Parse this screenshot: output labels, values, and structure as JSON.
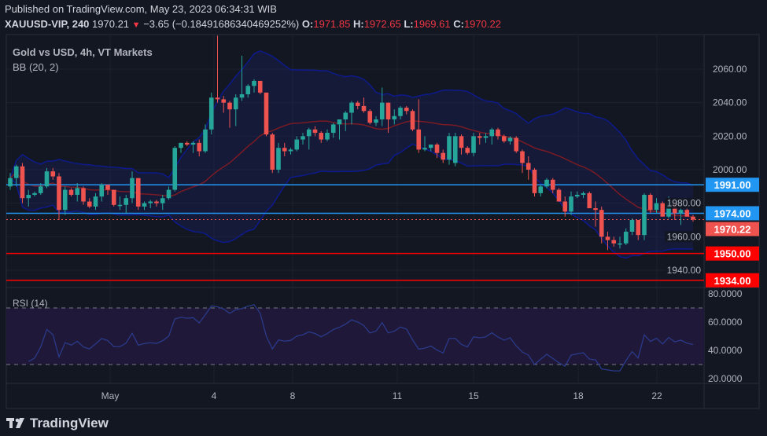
{
  "header": {
    "published": "Published on TradingView.com, May 23, 2023 06:34:31 WIB",
    "symbol": "XAUUSD-VIP, 240",
    "last": "1970.21",
    "change": "−3.65 (−0.18491686340469252%)",
    "o_label": "O:",
    "o": "1971.85",
    "h_label": "H:",
    "h": "1972.65",
    "l_label": "L:",
    "l": "1969.61",
    "c_label": "C:",
    "c": "1970.22"
  },
  "legend": {
    "title": "Gold vs USD, 4h, VT Markets",
    "bb": "BB (20, 2)",
    "rsi": "RSI (14)"
  },
  "footer": {
    "brand": "TradingView"
  },
  "colors": {
    "up": "#26a69a",
    "down": "#ef5350",
    "bb_band": "#0d1a8c",
    "bb_basis": "#7a1a24",
    "blue_line": "#2196f3",
    "red_line": "#ff0000",
    "rsi": "#2a3a8a"
  },
  "chart_data": {
    "type": "candlestick",
    "price_axis": {
      "ticks": [
        "2060.00",
        "2040.00",
        "2020.00",
        "2000.00",
        "1980.00",
        "1960.00",
        "1940.00"
      ],
      "range": [
        1926,
        2076
      ]
    },
    "rsi_axis": {
      "ticks": [
        "80.0000",
        "60.0000",
        "40.0000",
        "20.0000"
      ],
      "range": [
        15,
        85
      ],
      "bands": [
        30,
        70
      ]
    },
    "x_ticks": [
      "May",
      "4",
      "8",
      "11",
      "15",
      "18",
      "22"
    ],
    "levels": [
      {
        "price": 1991.0,
        "label": "1991.00",
        "color": "#2196f3"
      },
      {
        "price": 1974.0,
        "label": "1974.00",
        "color": "#2196f3"
      },
      {
        "price": 1950.0,
        "label": "1950.00",
        "color": "#ff0000"
      },
      {
        "price": 1934.0,
        "label": "1934.00",
        "color": "#ff0000"
      }
    ],
    "last_price": {
      "price": 1970.22,
      "label": "1970.22"
    },
    "candles": [
      [
        1990,
        1998,
        1988,
        1995
      ],
      [
        1995,
        2003,
        1990,
        2002
      ],
      [
        2002,
        2004,
        1980,
        1983
      ],
      [
        1983,
        1988,
        1978,
        1985
      ],
      [
        1985,
        1987,
        1984,
        1986
      ],
      [
        1986,
        1992,
        1985,
        1990
      ],
      [
        1990,
        2001,
        1989,
        1999
      ],
      [
        1999,
        2001,
        1994,
        1996
      ],
      [
        1996,
        1998,
        1970,
        1976
      ],
      [
        1976,
        1990,
        1973,
        1988
      ],
      [
        1988,
        1989,
        1984,
        1985
      ],
      [
        1985,
        1992,
        1981,
        1989
      ],
      [
        1989,
        1990,
        1979,
        1981
      ],
      [
        1981,
        1983,
        1977,
        1978
      ],
      [
        1978,
        1986,
        1976,
        1984
      ],
      [
        1984,
        1992,
        1981,
        1991
      ],
      [
        1991,
        1991,
        1985,
        1988
      ],
      [
        1988,
        1988,
        1978,
        1979
      ],
      [
        1979,
        1984,
        1976,
        1979
      ],
      [
        1979,
        1985,
        1974,
        1983
      ],
      [
        1983,
        1999,
        1980,
        1995
      ],
      [
        1995,
        1995,
        1976,
        1978
      ],
      [
        1978,
        1981,
        1976,
        1980
      ],
      [
        1980,
        1982,
        1977,
        1981
      ],
      [
        1981,
        1982,
        1978,
        1980
      ],
      [
        1980,
        1985,
        1976,
        1983
      ],
      [
        1983,
        1990,
        1982,
        1988
      ],
      [
        1988,
        2014,
        1987,
        2013
      ],
      [
        2013,
        2016,
        2010,
        2016
      ],
      [
        2016,
        2017,
        2014,
        2015
      ],
      [
        2015,
        2017,
        2010,
        2016
      ],
      [
        2016,
        2018,
        2008,
        2011
      ],
      [
        2011,
        2027,
        2010,
        2024
      ],
      [
        2024,
        2046,
        2021,
        2043
      ],
      [
        2043,
        2080,
        2040,
        2042
      ],
      [
        2042,
        2044,
        2034,
        2040
      ],
      [
        2040,
        2041,
        2025,
        2036
      ],
      [
        2036,
        2045,
        2026,
        2043
      ],
      [
        2043,
        2068,
        2041,
        2045
      ],
      [
        2045,
        2051,
        2043,
        2050
      ],
      [
        2050,
        2054,
        2046,
        2053
      ],
      [
        2053,
        2053,
        2045,
        2046
      ],
      [
        2046,
        2046,
        2020,
        2021
      ],
      [
        2021,
        2022,
        1998,
        2000
      ],
      [
        2000,
        2016,
        1998,
        2013
      ],
      [
        2013,
        2016,
        2008,
        2011
      ],
      [
        2011,
        2013,
        2009,
        2012
      ],
      [
        2012,
        2020,
        2011,
        2018
      ],
      [
        2018,
        2022,
        2015,
        2020
      ],
      [
        2020,
        2025,
        2012,
        2024
      ],
      [
        2024,
        2026,
        2020,
        2022
      ],
      [
        2022,
        2023,
        2016,
        2018
      ],
      [
        2018,
        2024,
        2017,
        2022
      ],
      [
        2022,
        2028,
        2019,
        2027
      ],
      [
        2027,
        2030,
        2018,
        2030
      ],
      [
        2030,
        2035,
        2023,
        2034
      ],
      [
        2034,
        2041,
        2027,
        2040
      ],
      [
        2040,
        2041,
        2036,
        2038
      ],
      [
        2038,
        2043,
        2034,
        2035
      ],
      [
        2035,
        2036,
        2027,
        2028
      ],
      [
        2028,
        2032,
        2026,
        2030
      ],
      [
        2030,
        2049,
        2026,
        2040
      ],
      [
        2040,
        2040,
        2022,
        2030
      ],
      [
        2030,
        2036,
        2027,
        2032
      ],
      [
        2032,
        2038,
        2030,
        2037
      ],
      [
        2037,
        2038,
        2033,
        2035
      ],
      [
        2035,
        2036,
        2023,
        2024
      ],
      [
        2024,
        2042,
        2010,
        2012
      ],
      [
        2012,
        2020,
        2011,
        2013
      ],
      [
        2013,
        2015,
        2011,
        2015
      ],
      [
        2015,
        2016,
        2007,
        2010
      ],
      [
        2010,
        2012,
        2004,
        2006
      ],
      [
        2006,
        2022,
        2003,
        2020
      ],
      [
        2004,
        2022,
        2002,
        2020
      ],
      [
        2020,
        2021,
        2009,
        2013
      ],
      [
        2013,
        2014,
        2009,
        2010
      ],
      [
        2010,
        2022,
        2008,
        2020
      ],
      [
        2020,
        2022,
        2015,
        2019
      ],
      [
        2019,
        2022,
        2016,
        2020
      ],
      [
        2020,
        2025,
        2015,
        2024
      ],
      [
        2024,
        2025,
        2018,
        2020
      ],
      [
        2020,
        2021,
        2016,
        2017
      ],
      [
        2017,
        2020,
        2015,
        2019
      ],
      [
        2019,
        2020,
        2010,
        2011
      ],
      [
        2011,
        2012,
        1998,
        2004
      ],
      [
        2004,
        2008,
        1994,
        2000
      ],
      [
        2000,
        2001,
        1984,
        1986
      ],
      [
        1986,
        1991,
        1984,
        1990
      ],
      [
        1990,
        1995,
        1989,
        1994
      ],
      [
        1994,
        1995,
        1986,
        1988
      ],
      [
        1988,
        1989,
        1981,
        1981
      ],
      [
        1981,
        1984,
        1972,
        1975
      ],
      [
        1975,
        1987,
        1973,
        1984
      ],
      [
        1984,
        1987,
        1983,
        1985
      ],
      [
        1985,
        1987,
        1983,
        1986
      ],
      [
        1986,
        1987,
        1977,
        1977
      ],
      [
        1977,
        1981,
        1966,
        1976
      ],
      [
        1976,
        1978,
        1956,
        1960
      ],
      [
        1960,
        1963,
        1952,
        1958
      ],
      [
        1958,
        1960,
        1954,
        1956
      ],
      [
        1956,
        1960,
        1953,
        1956
      ],
      [
        1956,
        1965,
        1955,
        1963
      ],
      [
        1963,
        1971,
        1961,
        1970
      ],
      [
        1970,
        1970,
        1958,
        1961
      ],
      [
        1961,
        1986,
        1958,
        1985
      ],
      [
        1985,
        1986,
        1974,
        1976
      ],
      [
        1976,
        1983,
        1974,
        1980
      ],
      [
        1980,
        1981,
        1972,
        1972
      ],
      [
        1972,
        1984,
        1971,
        1980
      ],
      [
        1980,
        1981,
        1970,
        1974
      ],
      [
        1974,
        1980,
        1967,
        1976
      ],
      [
        1976,
        1978,
        1972,
        1972
      ],
      [
        1972,
        1973,
        1969,
        1970.22
      ]
    ]
  }
}
